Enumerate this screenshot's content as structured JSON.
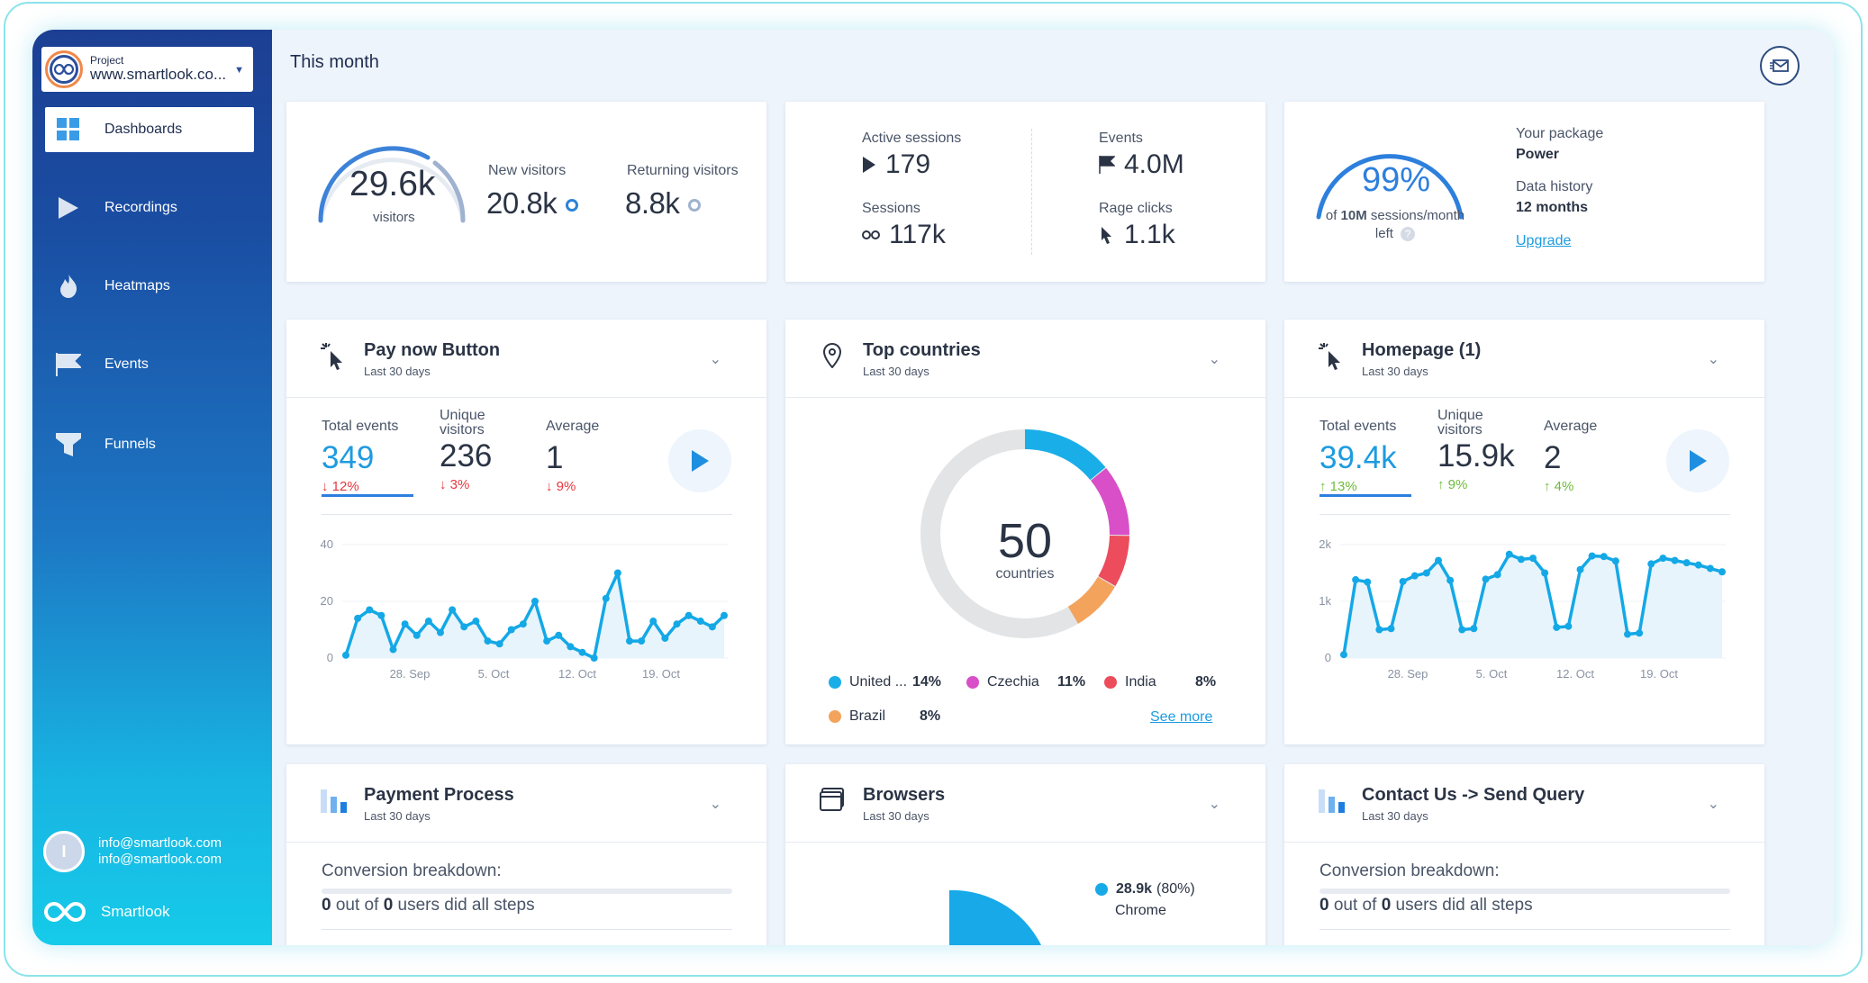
{
  "sidebar": {
    "project_label": "Project",
    "project_name": "www.smartlook.co...",
    "items": [
      {
        "label": "Dashboards",
        "icon": "dashboard-icon"
      },
      {
        "label": "Recordings",
        "icon": "play-icon"
      },
      {
        "label": "Heatmaps",
        "icon": "flame-icon"
      },
      {
        "label": "Events",
        "icon": "flag-icon"
      },
      {
        "label": "Funnels",
        "icon": "funnel-icon"
      }
    ],
    "user_initial": "I",
    "user_email_1": "info@smartlook.com",
    "user_email_2": "info@smartlook.com",
    "brand": "Smartlook"
  },
  "header": {
    "title": "This month"
  },
  "visitors": {
    "total": "29.6k",
    "total_label": "visitors",
    "new_label": "New visitors",
    "new_value": "20.8k",
    "returning_label": "Returning visitors",
    "returning_value": "8.8k"
  },
  "sessions": {
    "active_label": "Active sessions",
    "active_value": "179",
    "events_label": "Events",
    "events_value": "4.0M",
    "sessions_label": "Sessions",
    "sessions_value": "117k",
    "rage_label": "Rage clicks",
    "rage_value": "1.1k"
  },
  "package": {
    "percent": "99%",
    "percent_value": 0.99,
    "caption_prefix": "of ",
    "caption_bold": "10M",
    "caption_suffix": " sessions/month",
    "caption_left": "left",
    "package_label": "Your package",
    "package_value": "Power",
    "history_label": "Data history",
    "history_value": "12 months",
    "upgrade": "Upgrade"
  },
  "paynow": {
    "title": "Pay now Button",
    "subtitle": "Last 30 days",
    "total_label": "Total events",
    "total_value": "349",
    "total_delta": "↓ 12%",
    "unique_label_1": "Unique",
    "unique_label_2": "visitors",
    "unique_value": "236",
    "unique_delta": "↓ 3%",
    "avg_label": "Average",
    "avg_value": "1",
    "avg_delta": "↓ 9%"
  },
  "countries": {
    "title": "Top countries",
    "subtitle": "Last 30 days",
    "center_value": "50",
    "center_label": "countries",
    "legend": [
      {
        "name": "United ...",
        "pct": "14%",
        "color": "#1aaee8"
      },
      {
        "name": "Czechia",
        "pct": "11%",
        "color": "#d94fc7"
      },
      {
        "name": "India",
        "pct": "8%",
        "color": "#ec4c5c"
      },
      {
        "name": "Brazil",
        "pct": "8%",
        "color": "#f4a35c"
      }
    ],
    "see_more": "See more"
  },
  "homepage": {
    "title": "Homepage (1)",
    "subtitle": "Last 30 days",
    "total_label": "Total events",
    "total_value": "39.4k",
    "total_delta": "↑ 13%",
    "unique_label_1": "Unique",
    "unique_label_2": "visitors",
    "unique_value": "15.9k",
    "unique_delta": "↑ 9%",
    "avg_label": "Average",
    "avg_value": "2",
    "avg_delta": "↑ 4%"
  },
  "payment": {
    "title": "Payment Process",
    "subtitle": "Last 30 days",
    "breakdown": "Conversion breakdown:",
    "steps_n1": "0",
    "steps_mid": " out of ",
    "steps_n2": "0",
    "steps_suffix": " users did all steps"
  },
  "browsers": {
    "title": "Browsers",
    "subtitle": "Last 30 days",
    "top_value": "28.9k",
    "top_pct": "(80%)",
    "top_name": "Chrome"
  },
  "contact": {
    "title": "Contact Us -> Send Query",
    "subtitle": "Last 30 days",
    "breakdown": "Conversion breakdown:",
    "steps_n1": "0",
    "steps_mid": " out of ",
    "steps_n2": "0",
    "steps_suffix": " users did all steps"
  },
  "chart_data": [
    {
      "type": "line",
      "title": "Pay now Button",
      "ylim": [
        0,
        40
      ],
      "yticks": [
        "0",
        "20",
        "40"
      ],
      "xticks": [
        "28. Sep",
        "5. Oct",
        "12. Oct",
        "19. Oct"
      ],
      "series": [
        {
          "values": [
            1,
            14,
            17,
            15,
            3,
            12,
            8,
            13,
            9,
            17,
            11,
            13,
            6,
            5,
            10,
            12,
            20,
            6,
            8,
            4,
            2,
            0,
            21,
            30,
            6,
            6,
            13,
            7,
            12,
            15,
            13,
            11,
            15
          ]
        }
      ]
    },
    {
      "type": "pie",
      "title": "Top countries",
      "total_label": "50 countries",
      "slices": [
        {
          "name": "United ...",
          "value": 14
        },
        {
          "name": "Czechia",
          "value": 11
        },
        {
          "name": "India",
          "value": 8
        },
        {
          "name": "Brazil",
          "value": 8
        }
      ]
    },
    {
      "type": "line",
      "title": "Homepage (1)",
      "ylim": [
        0,
        2000
      ],
      "yticks": [
        "0",
        "1k",
        "2k"
      ],
      "xticks": [
        "28. Sep",
        "5. Oct",
        "12. Oct",
        "19. Oct"
      ],
      "series": [
        {
          "values": [
            60,
            1380,
            1340,
            500,
            520,
            1350,
            1450,
            1500,
            1720,
            1370,
            500,
            520,
            1390,
            1470,
            1830,
            1740,
            1760,
            1500,
            540,
            560,
            1560,
            1800,
            1790,
            1710,
            420,
            440,
            1660,
            1760,
            1720,
            1680,
            1640,
            1580,
            1520
          ]
        }
      ]
    }
  ]
}
